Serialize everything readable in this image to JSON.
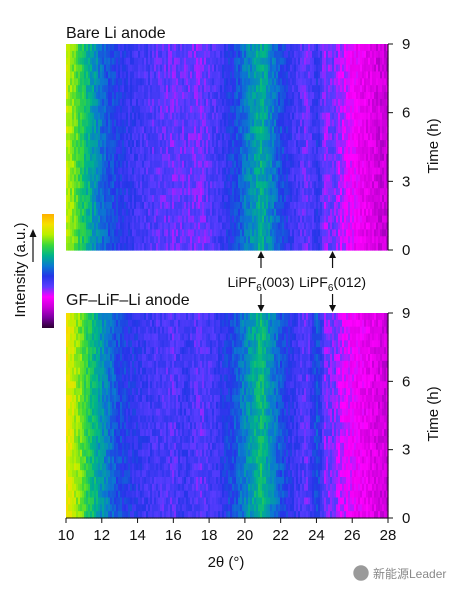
{
  "chart_data": [
    {
      "type": "heatmap",
      "title": "Bare Li anode",
      "xlabel": "2θ (°)",
      "ylabel": "Time (h)",
      "xlim": [
        10,
        28
      ],
      "ylim": [
        0,
        9
      ],
      "x_ticks": [
        10,
        12,
        14,
        16,
        18,
        20,
        22,
        24,
        26,
        28
      ],
      "y_ticks": [
        0,
        3,
        6,
        9
      ],
      "colorbar_label": "Intensity (a.u.)",
      "colorscale": [
        "#2a0030",
        "#7a00a0",
        "#c800d8",
        "#ff00ff",
        "#5a3cff",
        "#2436e8",
        "#0a7ad0",
        "#00b48a",
        "#3ad83a",
        "#b8f000",
        "#f6e000",
        "#ffb000"
      ],
      "intensity_profile": {
        "two_theta": [
          10,
          10.6,
          11.2,
          12,
          13,
          14,
          15,
          16,
          16.6,
          17.5,
          18.5,
          19.5,
          20.4,
          20.9,
          21.5,
          22.5,
          23.5,
          24.05,
          24.5,
          24.9,
          25.3,
          26,
          27,
          28
        ],
        "intensity": [
          0.84,
          0.74,
          0.64,
          0.53,
          0.45,
          0.41,
          0.38,
          0.36,
          0.37,
          0.35,
          0.4,
          0.48,
          0.58,
          0.63,
          0.55,
          0.43,
          0.36,
          0.44,
          0.33,
          0.37,
          0.32,
          0.27,
          0.22,
          0.18
        ]
      }
    },
    {
      "type": "heatmap",
      "title": "GF–LiF–Li anode",
      "xlabel": "2θ (°)",
      "ylabel": "Time (h)",
      "xlim": [
        10,
        28
      ],
      "ylim": [
        0,
        9
      ],
      "x_ticks": [
        10,
        12,
        14,
        16,
        18,
        20,
        22,
        24,
        26,
        28
      ],
      "y_ticks": [
        0,
        3,
        6,
        9
      ],
      "intensity_profile": {
        "two_theta": [
          10,
          10.6,
          11.2,
          12,
          13,
          14,
          15,
          16,
          16.6,
          17.5,
          18.5,
          19.5,
          20.4,
          20.9,
          21.5,
          22.5,
          23.5,
          24.05,
          24.5,
          24.9,
          25.3,
          26,
          27,
          28
        ],
        "intensity": [
          0.9,
          0.8,
          0.7,
          0.58,
          0.48,
          0.43,
          0.4,
          0.38,
          0.42,
          0.37,
          0.42,
          0.5,
          0.6,
          0.66,
          0.56,
          0.44,
          0.37,
          0.5,
          0.34,
          0.36,
          0.31,
          0.27,
          0.23,
          0.19
        ]
      }
    }
  ],
  "peak_annotations": [
    {
      "prefix": "LiPF",
      "sub": "6",
      "suffix": "(003)",
      "two_theta": 20.9
    },
    {
      "prefix": "LiPF",
      "sub": "6",
      "suffix": "(012)",
      "two_theta": 24.9
    }
  ],
  "watermark": "新能源Leader"
}
